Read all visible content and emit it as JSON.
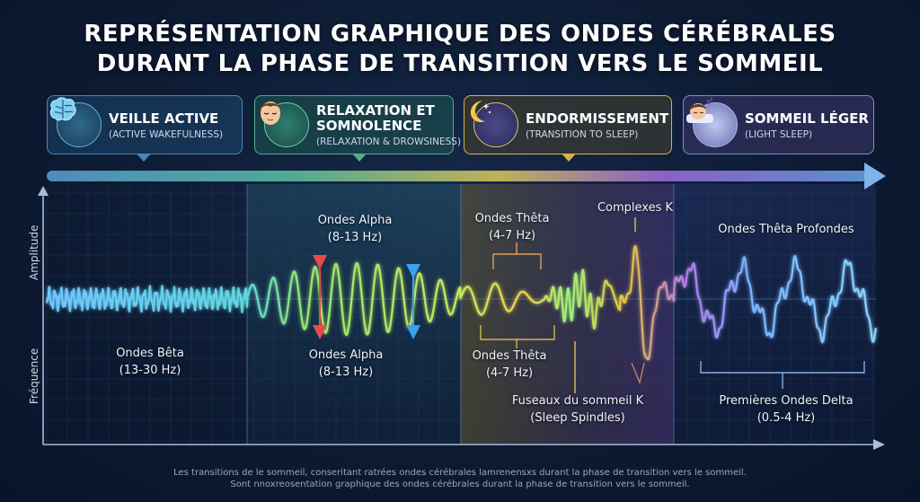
{
  "title": {
    "line1": "REPRÉSENTATION GRAPHIQUE DES ONDES CÉRÉBRALES",
    "line2": "DURANT LA PHASE DE TRANSITION VERS LE SOMMEIL"
  },
  "phases": [
    {
      "name": "VEILLE ACTIVE",
      "sub": "(ACTIVE WAKEFULNESS)",
      "icon": "brain-icon",
      "color": "#4a86b8"
    },
    {
      "name": "RELAXATION ET",
      "name2": "SOMNOLENCE",
      "sub": "(RELAXATION & DROWSINESS)",
      "icon": "face-icon",
      "color": "#4fae8c"
    },
    {
      "name": "ENDORMISSEMENT",
      "sub": "(TRANSITION TO SLEEP)",
      "icon": "moon-icon",
      "color": "#d8b24a"
    },
    {
      "name": "SOMMEIL LÉGER",
      "sub": "(LIGHT SLEEP)",
      "icon": "sleeping-face-icon",
      "color": "#8d84d0"
    }
  ],
  "axes": {
    "y_top": "Amplitude",
    "y_bottom": "Fréquence"
  },
  "labels": {
    "beta": {
      "name": "Ondes Bêta",
      "range": "(13-30 Hz)"
    },
    "alpha_top": {
      "name": "Ondes Alpha",
      "range": "(8-13 Hz)"
    },
    "alpha_bottom": {
      "name": "Ondes Alpha",
      "range": "(8-13 Hz)"
    },
    "theta_top": {
      "name": "Ondes Thêta",
      "range": "(4-7 Hz)"
    },
    "theta_bottom": {
      "name": "Ondes Thêta",
      "range": "(4-7 Hz)"
    },
    "k_complex": "Complexes K",
    "spindles": {
      "name": "Fuseaux du sommeil K",
      "en": "(Sleep Spindles)"
    },
    "deep_theta": "Ondes Thêta Profondes",
    "delta": {
      "name": "Premières Ondes Delta",
      "range": "(0.5-4 Hz)"
    }
  },
  "footer": {
    "line1": "Les transitions de le sommeil, conseritant ratrées ondes cérébrales lamrenensxs durant la phase de transition vers le sommeil.",
    "line2": "Sont nnoxreosentation graphique des ondes cérébrales durant la phase  de transition vers le sommeil."
  }
}
